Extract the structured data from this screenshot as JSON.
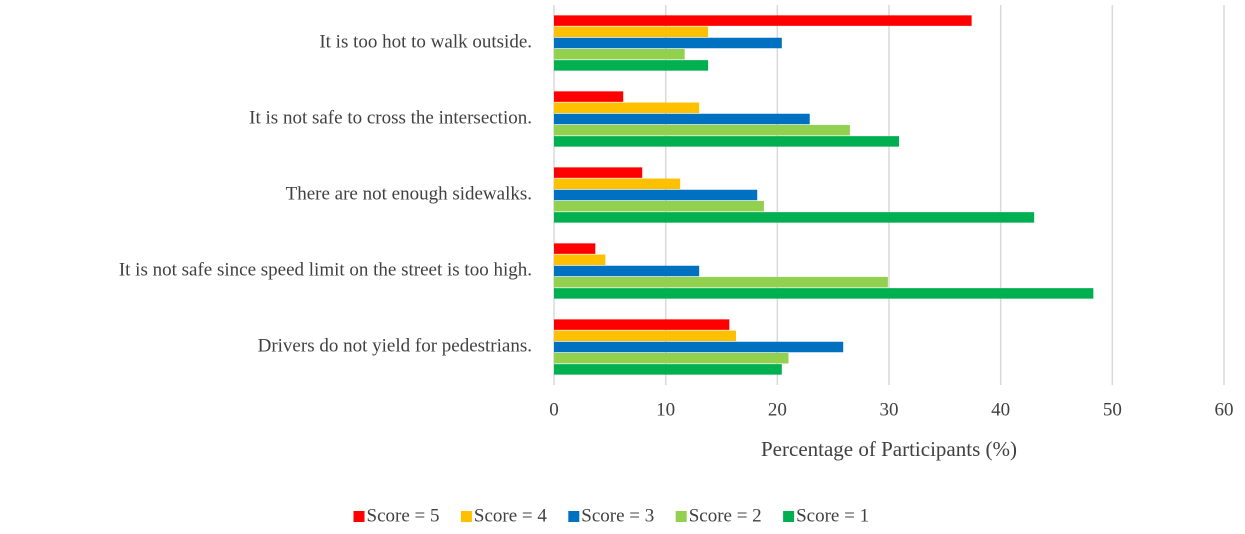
{
  "chart_data": {
    "type": "hbar",
    "x_label": "Percentage of Participants (%)",
    "categories": [
      "It is too hot to walk outside.",
      "It is not safe to cross the intersection.",
      "There are not enough sidewalks.",
      "It is not safe since speed limit on the street is too high.",
      "Drivers do not yield for pedestrians."
    ],
    "series": [
      {
        "name": "Score = 5",
        "color": "#ff0000",
        "values": [
          37.4,
          6.2,
          7.9,
          3.7,
          15.7
        ]
      },
      {
        "name": "Score = 4",
        "color": "#ffc000",
        "values": [
          13.8,
          13.0,
          11.3,
          4.6,
          16.3
        ]
      },
      {
        "name": "Score = 3",
        "color": "#0070c0",
        "values": [
          20.4,
          22.9,
          18.2,
          13.0,
          25.9
        ]
      },
      {
        "name": "Score = 2",
        "color": "#92d050",
        "values": [
          11.7,
          26.5,
          18.8,
          29.9,
          21.0
        ]
      },
      {
        "name": "Score = 1",
        "color": "#00b050",
        "values": [
          13.8,
          30.9,
          43.0,
          48.3,
          20.4
        ]
      }
    ],
    "xlim": [
      0,
      60
    ],
    "xticks": [
      0,
      10,
      20,
      30,
      40,
      50,
      60
    ],
    "grid": true,
    "legend": "bottom"
  }
}
